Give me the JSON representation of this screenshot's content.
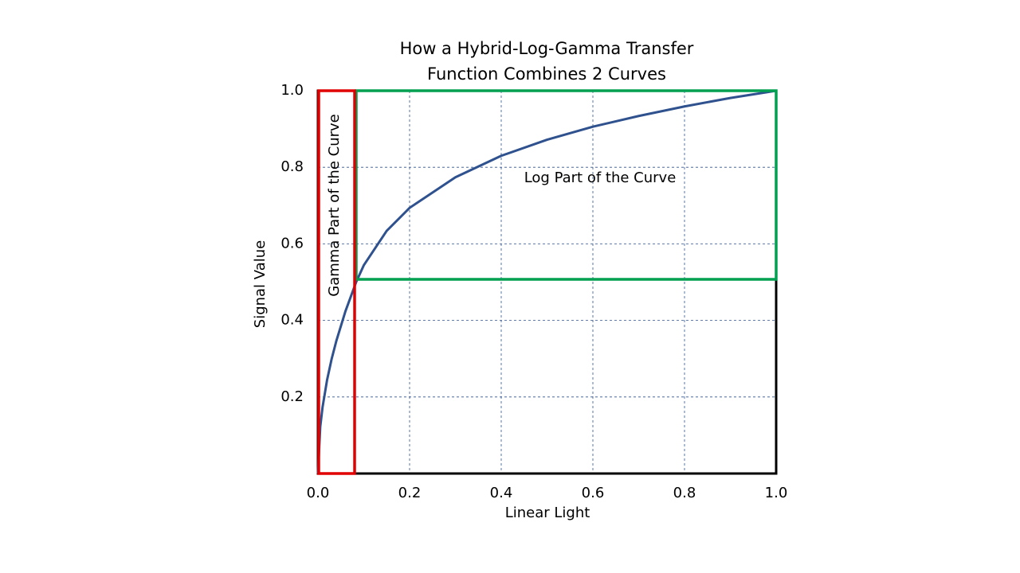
{
  "chart_data": {
    "type": "line",
    "title_lines": [
      "How a Hybrid-Log-Gamma Transfer",
      "Function Combines 2 Curves"
    ],
    "x_label": "Linear Light",
    "y_label": "Signal Value",
    "annotations": [
      "Gamma Part of the Curve",
      "Log Part of the Curve"
    ],
    "x": [
      0,
      0.005,
      0.01,
      0.02,
      0.03,
      0.04,
      0.06,
      0.0833,
      0.1,
      0.15,
      0.2,
      0.3,
      0.4,
      0.5,
      0.6,
      0.7,
      0.8,
      0.9,
      1.0
    ],
    "values": [
      0,
      0.122,
      0.173,
      0.245,
      0.3,
      0.346,
      0.424,
      0.5,
      0.544,
      0.634,
      0.694,
      0.774,
      0.83,
      0.872,
      0.906,
      0.934,
      0.959,
      0.981,
      1.0
    ],
    "color": "#2f528f",
    "xlim": [
      0,
      1
    ],
    "ylim": [
      0,
      1
    ],
    "xticks": [
      {
        "value": 0,
        "label": "0.0"
      },
      0.2,
      0.4,
      0.6,
      0.8,
      {
        "value": 1,
        "label": "1.0"
      }
    ],
    "yticks": [
      0.2,
      0.4,
      0.6,
      0.8,
      {
        "value": 1,
        "label": "1.0"
      }
    ],
    "grid": true
  }
}
